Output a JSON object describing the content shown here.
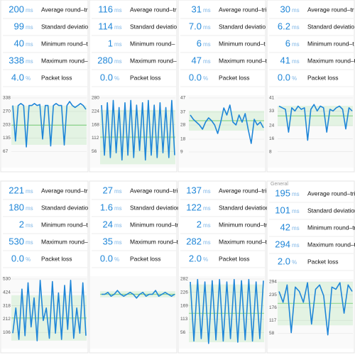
{
  "panels": [
    {
      "stats": [
        {
          "value": "200",
          "unit": "ms",
          "label": "Average round–tr"
        },
        {
          "value": "99",
          "unit": "ms",
          "label": "Standard deviatio"
        },
        {
          "value": "40",
          "unit": "ms",
          "label": "Minimum round–t"
        },
        {
          "value": "338",
          "unit": "ms",
          "label": "Maximum round–"
        },
        {
          "value": "4.0",
          "unit": "%",
          "label": "Packet loss"
        }
      ],
      "ylim": [
        0,
        338
      ],
      "yticks": [
        338,
        270,
        203,
        135,
        67
      ],
      "values": [
        300,
        120,
        300,
        310,
        300,
        90,
        300,
        300,
        310,
        300,
        305,
        130,
        300,
        300,
        95,
        300,
        310,
        300,
        300,
        100,
        300,
        320,
        300,
        290,
        300,
        310,
        300,
        280
      ]
    },
    {
      "stats": [
        {
          "value": "116",
          "unit": "ms",
          "label": "Average round–tr"
        },
        {
          "value": "114",
          "unit": "ms",
          "label": "Standard deviatio"
        },
        {
          "value": "1",
          "unit": "ms",
          "label": "Minimum round–"
        },
        {
          "value": "280",
          "unit": "ms",
          "label": "Maximum round–"
        },
        {
          "value": "0.0",
          "unit": "%",
          "label": "Packet loss"
        }
      ],
      "ylim": [
        0,
        280
      ],
      "yticks": [
        280,
        224,
        168,
        112,
        56
      ],
      "values": [
        250,
        40,
        260,
        30,
        270,
        50,
        240,
        20,
        260,
        40,
        270,
        30,
        250,
        60,
        260,
        20,
        270,
        40,
        250,
        30,
        260,
        50,
        240,
        30,
        270,
        40
      ]
    },
    {
      "stats": [
        {
          "value": "31",
          "unit": "ms",
          "label": "Average round–tri"
        },
        {
          "value": "7.0",
          "unit": "ms",
          "label": "Standard deviatio"
        },
        {
          "value": "6",
          "unit": "ms",
          "label": "Minimum round–t"
        },
        {
          "value": "47",
          "unit": "ms",
          "label": "Maximum round–t"
        },
        {
          "value": "0.0",
          "unit": "%",
          "label": "Packet loss"
        }
      ],
      "ylim": [
        0,
        47
      ],
      "yticks": [
        47,
        37,
        28,
        18,
        9
      ],
      "values": [
        35,
        32,
        30,
        28,
        25,
        30,
        33,
        31,
        28,
        22,
        30,
        40,
        35,
        42,
        30,
        28,
        35,
        30,
        36,
        25,
        15,
        32,
        28,
        30,
        26
      ]
    },
    {
      "stats": [
        {
          "value": "30",
          "unit": "ms",
          "label": "Average round–tr"
        },
        {
          "value": "6.2",
          "unit": "ms",
          "label": "Standard deviatio"
        },
        {
          "value": "6",
          "unit": "ms",
          "label": "Minimum round–t"
        },
        {
          "value": "41",
          "unit": "ms",
          "label": "Maximum round–t"
        },
        {
          "value": "0.0",
          "unit": "%",
          "label": "Packet loss"
        }
      ],
      "ylim": [
        0,
        41
      ],
      "yticks": [
        41,
        33,
        24,
        16,
        8
      ],
      "values": [
        36,
        35,
        34,
        20,
        35,
        33,
        36,
        34,
        35,
        15,
        34,
        37,
        33,
        36,
        35,
        20,
        34,
        33,
        35,
        36,
        34,
        22,
        35,
        33
      ]
    },
    {
      "stats": [
        {
          "value": "221",
          "unit": "ms",
          "label": "Average round–tr"
        },
        {
          "value": "180",
          "unit": "ms",
          "label": "Standard deviatio"
        },
        {
          "value": "2",
          "unit": "ms",
          "label": "Minimum round–t"
        },
        {
          "value": "530",
          "unit": "ms",
          "label": "Maximum round–"
        },
        {
          "value": "0.0",
          "unit": "%",
          "label": "Packet loss"
        }
      ],
      "ylim": [
        0,
        530
      ],
      "yticks": [
        530,
        424,
        318,
        212,
        106
      ],
      "values": [
        100,
        300,
        50,
        450,
        80,
        500,
        150,
        380,
        40,
        520,
        200,
        300,
        60,
        510,
        100,
        420,
        50,
        480,
        130,
        520,
        60,
        300,
        100,
        500,
        80
      ]
    },
    {
      "stats": [
        {
          "value": "27",
          "unit": "ms",
          "label": "Average round–trip ti"
        },
        {
          "value": "1.6",
          "unit": "ms",
          "label": "Standard deviation"
        },
        {
          "value": "24",
          "unit": "ms",
          "label": "Minimum round–trip"
        },
        {
          "value": "35",
          "unit": "ms",
          "label": "Maximum round–trip"
        },
        {
          "value": "0.0",
          "unit": "%",
          "label": "Packet loss"
        }
      ],
      "ylim": [
        0,
        35
      ],
      "values": [
        27,
        27,
        28,
        26,
        27,
        29,
        27,
        26,
        27,
        28,
        27,
        25,
        27,
        28,
        26,
        27,
        27,
        29,
        26,
        27,
        28,
        27,
        26,
        27
      ]
    },
    {
      "stats": [
        {
          "value": "137",
          "unit": "ms",
          "label": "Average round–trip"
        },
        {
          "value": "122",
          "unit": "ms",
          "label": "Standard deviation"
        },
        {
          "value": "2",
          "unit": "ms",
          "label": "Minimum round–trip"
        },
        {
          "value": "282",
          "unit": "ms",
          "label": "Maximum round–trip"
        },
        {
          "value": "2.0",
          "unit": "%",
          "label": "Packet loss"
        }
      ],
      "ylim": [
        0,
        282
      ],
      "yticks": [
        282,
        226,
        169,
        113,
        56
      ],
      "values": [
        270,
        20,
        280,
        30,
        270,
        10,
        275,
        25,
        280,
        20,
        270,
        30,
        280,
        15,
        275,
        25,
        280,
        20,
        270,
        30,
        275
      ]
    },
    {
      "header": "General",
      "stats": [
        {
          "value": "195",
          "unit": "ms",
          "label": "Average round–tri"
        },
        {
          "value": "101",
          "unit": "ms",
          "label": "Standard deviation"
        },
        {
          "value": "42",
          "unit": "ms",
          "label": "Minimum round–tri"
        },
        {
          "value": "294",
          "unit": "ms",
          "label": "Maximum round–tri"
        },
        {
          "value": "2.0",
          "unit": "%",
          "label": "Packet loss"
        }
      ],
      "ylim": [
        0,
        294
      ],
      "yticks": [
        294,
        235,
        176,
        117,
        58
      ],
      "values": [
        250,
        200,
        280,
        60,
        270,
        250,
        200,
        290,
        100,
        260,
        280,
        230,
        50,
        270,
        260,
        290,
        150,
        280,
        250
      ]
    }
  ]
}
